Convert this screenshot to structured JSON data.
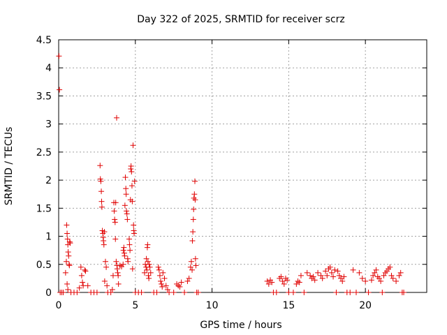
{
  "chart_data": {
    "type": "scatter",
    "title": "Day 322 of 2025, SRMTID for receiver scrz",
    "xlabel": "GPS time / hours",
    "ylabel": "SRMTID / TECUs",
    "xlim": [
      0,
      24
    ],
    "ylim": [
      0,
      4.5
    ],
    "xticks": [
      "0",
      "5",
      "10",
      "15",
      "20"
    ],
    "xtick_values": [
      0,
      5,
      10,
      15,
      20
    ],
    "yticks": [
      "0",
      "0.5",
      "1",
      "1.5",
      "2",
      "2.5",
      "3",
      "3.5",
      "4",
      "4.5"
    ],
    "ytick_values": [
      0,
      0.5,
      1,
      1.5,
      2,
      2.5,
      3,
      3.5,
      4,
      4.5
    ],
    "grid": true,
    "marker": "+",
    "color": "#e00000",
    "series": [
      {
        "name": "SRMTID",
        "points": [
          [
            0.02,
            4.21
          ],
          [
            0.05,
            3.61
          ],
          [
            0.1,
            0.0
          ],
          [
            0.2,
            0.0
          ],
          [
            0.3,
            0.0
          ],
          [
            0.45,
            0.35
          ],
          [
            0.5,
            0.55
          ],
          [
            0.52,
            1.2
          ],
          [
            0.55,
            1.05
          ],
          [
            0.58,
            0.95
          ],
          [
            0.6,
            0.85
          ],
          [
            0.62,
            0.72
          ],
          [
            0.65,
            0.65
          ],
          [
            0.68,
            0.5
          ],
          [
            0.7,
            0.48
          ],
          [
            0.72,
            0.9
          ],
          [
            0.75,
            0.88
          ],
          [
            0.55,
            0.15
          ],
          [
            0.6,
            0.05
          ],
          [
            0.8,
            0.0
          ],
          [
            1.0,
            0.0
          ],
          [
            1.2,
            0.0
          ],
          [
            1.35,
            0.08
          ],
          [
            1.45,
            0.45
          ],
          [
            1.5,
            0.3
          ],
          [
            1.55,
            0.18
          ],
          [
            1.6,
            0.12
          ],
          [
            1.7,
            0.4
          ],
          [
            1.75,
            0.38
          ],
          [
            1.9,
            0.12
          ],
          [
            2.1,
            0.0
          ],
          [
            2.3,
            0.0
          ],
          [
            2.5,
            0.0
          ],
          [
            2.7,
            2.26
          ],
          [
            2.72,
            2.02
          ],
          [
            2.75,
            1.98
          ],
          [
            2.78,
            1.8
          ],
          [
            2.8,
            1.62
          ],
          [
            2.82,
            1.52
          ],
          [
            2.85,
            1.1
          ],
          [
            2.88,
            1.05
          ],
          [
            2.9,
            0.98
          ],
          [
            2.92,
            0.92
          ],
          [
            2.95,
            0.85
          ],
          [
            2.98,
            1.08
          ],
          [
            3.0,
            0.2
          ],
          [
            3.05,
            0.55
          ],
          [
            3.1,
            0.45
          ],
          [
            3.15,
            0.12
          ],
          [
            3.2,
            0.0
          ],
          [
            3.4,
            0.0
          ],
          [
            3.5,
            0.05
          ],
          [
            3.55,
            0.3
          ],
          [
            3.6,
            1.6
          ],
          [
            3.62,
            1.45
          ],
          [
            3.65,
            1.3
          ],
          [
            3.68,
            1.25
          ],
          [
            3.7,
            0.95
          ],
          [
            3.72,
            1.6
          ],
          [
            3.75,
            0.55
          ],
          [
            3.78,
            3.11
          ],
          [
            3.8,
            0.48
          ],
          [
            3.82,
            0.42
          ],
          [
            3.85,
            0.35
          ],
          [
            3.88,
            0.3
          ],
          [
            3.9,
            0.15
          ],
          [
            4.0,
            0.48
          ],
          [
            4.1,
            0.46
          ],
          [
            4.2,
            0.5
          ],
          [
            4.22,
            0.75
          ],
          [
            4.25,
            0.8
          ],
          [
            4.28,
            0.7
          ],
          [
            4.3,
            0.65
          ],
          [
            4.32,
            1.55
          ],
          [
            4.35,
            2.05
          ],
          [
            4.38,
            1.85
          ],
          [
            4.4,
            1.75
          ],
          [
            4.42,
            1.45
          ],
          [
            4.45,
            1.4
          ],
          [
            4.48,
            1.3
          ],
          [
            4.5,
            0.6
          ],
          [
            4.52,
            0.55
          ],
          [
            4.6,
            0.95
          ],
          [
            4.62,
            0.85
          ],
          [
            4.65,
            0.75
          ],
          [
            4.68,
            1.65
          ],
          [
            4.7,
            2.2
          ],
          [
            4.72,
            2.25
          ],
          [
            4.75,
            2.15
          ],
          [
            4.78,
            1.9
          ],
          [
            4.8,
            1.62
          ],
          [
            4.82,
            0.42
          ],
          [
            4.85,
            2.62
          ],
          [
            4.88,
            1.2
          ],
          [
            4.9,
            1.1
          ],
          [
            4.92,
            1.05
          ],
          [
            4.95,
            1.98
          ],
          [
            5.0,
            0.0
          ],
          [
            5.2,
            0.0
          ],
          [
            5.4,
            0.0
          ],
          [
            5.6,
            0.35
          ],
          [
            5.65,
            0.5
          ],
          [
            5.7,
            0.45
          ],
          [
            5.72,
            0.6
          ],
          [
            5.75,
            0.4
          ],
          [
            5.78,
            0.8
          ],
          [
            5.8,
            0.85
          ],
          [
            5.82,
            0.55
          ],
          [
            5.85,
            0.3
          ],
          [
            5.88,
            0.25
          ],
          [
            5.9,
            0.5
          ],
          [
            5.95,
            0.45
          ],
          [
            6.0,
            0.35
          ],
          [
            6.2,
            0.0
          ],
          [
            6.4,
            0.0
          ],
          [
            6.5,
            0.45
          ],
          [
            6.55,
            0.4
          ],
          [
            6.6,
            0.3
          ],
          [
            6.65,
            0.2
          ],
          [
            6.7,
            0.15
          ],
          [
            6.75,
            0.1
          ],
          [
            6.8,
            0.35
          ],
          [
            6.9,
            0.25
          ],
          [
            7.0,
            0.12
          ],
          [
            7.1,
            0.05
          ],
          [
            7.2,
            0.0
          ],
          [
            7.5,
            0.0
          ],
          [
            7.7,
            0.15
          ],
          [
            7.8,
            0.12
          ],
          [
            7.9,
            0.1
          ],
          [
            8.0,
            0.18
          ],
          [
            8.2,
            0.0
          ],
          [
            8.4,
            0.2
          ],
          [
            8.5,
            0.25
          ],
          [
            8.6,
            0.45
          ],
          [
            8.65,
            0.55
          ],
          [
            8.7,
            0.4
          ],
          [
            8.72,
            0.92
          ],
          [
            8.75,
            1.08
          ],
          [
            8.78,
            1.3
          ],
          [
            8.8,
            1.48
          ],
          [
            8.82,
            1.68
          ],
          [
            8.85,
            1.75
          ],
          [
            8.88,
            1.98
          ],
          [
            8.9,
            1.65
          ],
          [
            8.92,
            0.6
          ],
          [
            8.95,
            0.48
          ],
          [
            9.0,
            0.0
          ],
          [
            9.1,
            0.0
          ],
          [
            13.6,
            0.2
          ],
          [
            13.7,
            0.15
          ],
          [
            13.8,
            0.22
          ],
          [
            13.9,
            0.18
          ],
          [
            14.0,
            0.0
          ],
          [
            14.2,
            0.0
          ],
          [
            14.4,
            0.25
          ],
          [
            14.5,
            0.28
          ],
          [
            14.6,
            0.2
          ],
          [
            14.7,
            0.15
          ],
          [
            14.8,
            0.25
          ],
          [
            14.9,
            0.22
          ],
          [
            15.0,
            0.0
          ],
          [
            15.3,
            0.0
          ],
          [
            15.5,
            0.15
          ],
          [
            15.6,
            0.2
          ],
          [
            15.7,
            0.18
          ],
          [
            15.8,
            0.3
          ],
          [
            16.0,
            0.0
          ],
          [
            16.2,
            0.35
          ],
          [
            16.4,
            0.3
          ],
          [
            16.5,
            0.25
          ],
          [
            16.6,
            0.28
          ],
          [
            16.7,
            0.22
          ],
          [
            16.9,
            0.35
          ],
          [
            17.1,
            0.3
          ],
          [
            17.2,
            0.25
          ],
          [
            17.4,
            0.38
          ],
          [
            17.5,
            0.3
          ],
          [
            17.6,
            0.42
          ],
          [
            17.7,
            0.45
          ],
          [
            17.8,
            0.35
          ],
          [
            17.9,
            0.28
          ],
          [
            18.0,
            0.4
          ],
          [
            18.1,
            0.0
          ],
          [
            18.2,
            0.38
          ],
          [
            18.3,
            0.3
          ],
          [
            18.4,
            0.25
          ],
          [
            18.5,
            0.2
          ],
          [
            18.6,
            0.28
          ],
          [
            18.8,
            0.0
          ],
          [
            19.0,
            0.0
          ],
          [
            19.2,
            0.4
          ],
          [
            19.4,
            0.0
          ],
          [
            19.6,
            0.35
          ],
          [
            19.8,
            0.25
          ],
          [
            20.0,
            0.2
          ],
          [
            20.2,
            0.0
          ],
          [
            20.4,
            0.22
          ],
          [
            20.5,
            0.3
          ],
          [
            20.6,
            0.35
          ],
          [
            20.7,
            0.4
          ],
          [
            20.8,
            0.28
          ],
          [
            20.9,
            0.25
          ],
          [
            21.0,
            0.2
          ],
          [
            21.1,
            0.0
          ],
          [
            21.2,
            0.3
          ],
          [
            21.3,
            0.35
          ],
          [
            21.4,
            0.38
          ],
          [
            21.5,
            0.42
          ],
          [
            21.6,
            0.45
          ],
          [
            21.7,
            0.3
          ],
          [
            21.8,
            0.25
          ],
          [
            22.0,
            0.2
          ],
          [
            22.2,
            0.3
          ],
          [
            22.3,
            0.35
          ],
          [
            22.4,
            0.0
          ],
          [
            22.5,
            0.0
          ]
        ]
      }
    ]
  }
}
